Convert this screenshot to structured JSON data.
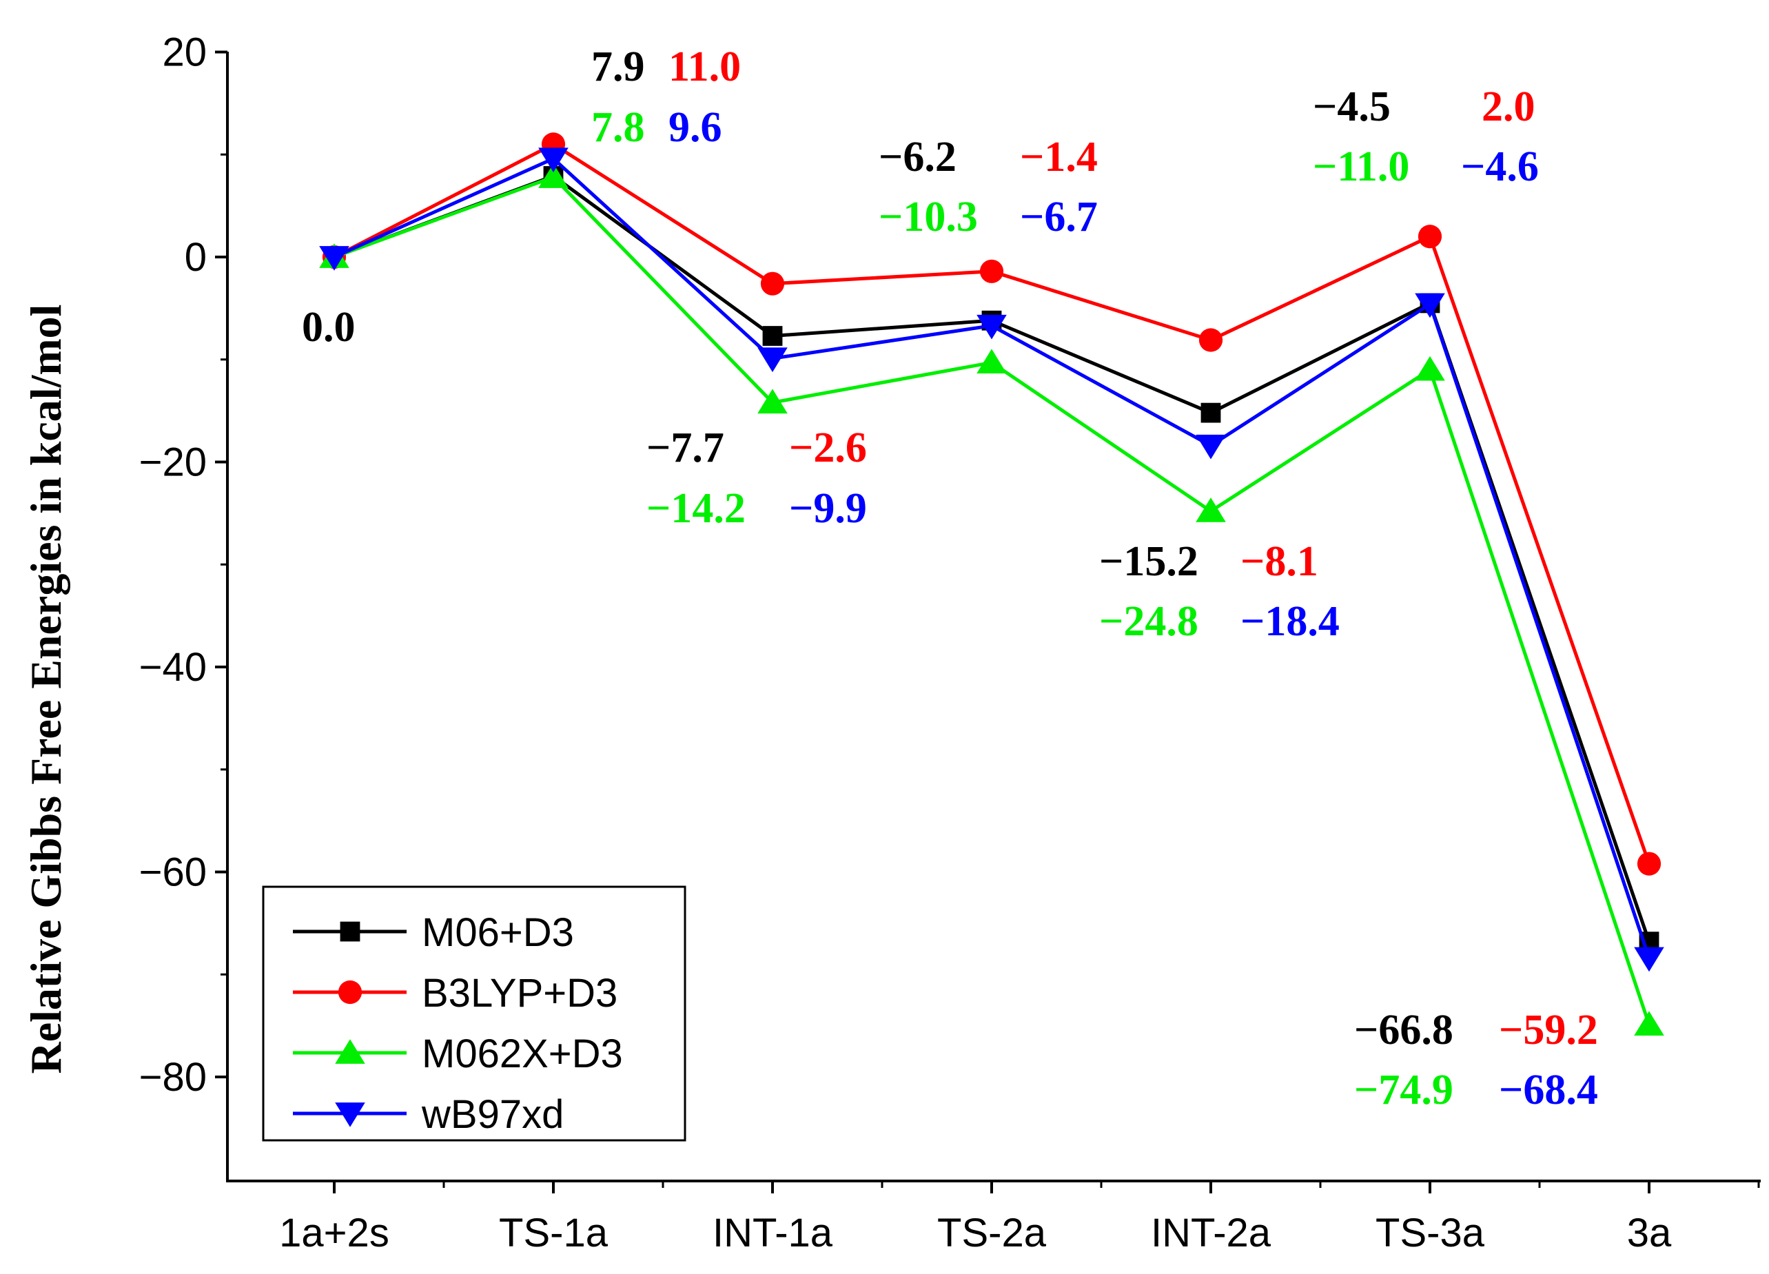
{
  "chart_data": {
    "type": "line",
    "ylabel": "Relative Gibbs Free Energies in kcal/mol",
    "xlabel": "",
    "categories": [
      "1a+2s",
      "TS-1a",
      "INT-1a",
      "TS-2a",
      "INT-2a",
      "TS-3a",
      "3a"
    ],
    "ylim": [
      -90,
      20
    ],
    "yticks": [
      20,
      0,
      -20,
      -40,
      -60,
      -80
    ],
    "ytick_labels": [
      "20",
      "0",
      "−20",
      "−40",
      "−60",
      "−80"
    ],
    "series": [
      {
        "name": "M06+D3",
        "color": "#000000",
        "marker": "square",
        "values": [
          0.0,
          7.9,
          -7.7,
          -6.2,
          -15.2,
          -4.5,
          -66.8
        ]
      },
      {
        "name": "B3LYP+D3",
        "color": "#ff0000",
        "marker": "circle",
        "values": [
          0.0,
          11.0,
          -2.6,
          -1.4,
          -8.1,
          2.0,
          -59.2
        ]
      },
      {
        "name": "M062X+D3",
        "color": "#00ee00",
        "marker": "triangle-up",
        "values": [
          0.0,
          7.8,
          -14.2,
          -10.3,
          -24.8,
          -11.0,
          -74.9
        ]
      },
      {
        "name": "wB97xd",
        "color": "#0000ff",
        "marker": "triangle-down",
        "values": [
          0.0,
          9.6,
          -9.9,
          -6.7,
          -18.4,
          -4.6,
          -68.4
        ]
      }
    ],
    "legend_position": "bottom-left",
    "grid": false,
    "annotations": [
      {
        "text": "0.0",
        "color": "#000000"
      },
      {
        "text": "7.9",
        "color": "#000000"
      },
      {
        "text": "11.0",
        "color": "#ff0000"
      },
      {
        "text": "7.8",
        "color": "#00ee00"
      },
      {
        "text": "9.6",
        "color": "#0000ff"
      },
      {
        "text": "−6.2",
        "color": "#000000"
      },
      {
        "text": "−1.4",
        "color": "#ff0000"
      },
      {
        "text": "−10.3",
        "color": "#00ee00"
      },
      {
        "text": "−6.7",
        "color": "#0000ff"
      },
      {
        "text": "−7.7",
        "color": "#000000"
      },
      {
        "text": "−2.6",
        "color": "#ff0000"
      },
      {
        "text": "−14.2",
        "color": "#00ee00"
      },
      {
        "text": "−9.9",
        "color": "#0000ff"
      },
      {
        "text": "−15.2",
        "color": "#000000"
      },
      {
        "text": "−8.1",
        "color": "#ff0000"
      },
      {
        "text": "−24.8",
        "color": "#00ee00"
      },
      {
        "text": "−18.4",
        "color": "#0000ff"
      },
      {
        "text": "−4.5",
        "color": "#000000"
      },
      {
        "text": "2.0",
        "color": "#ff0000"
      },
      {
        "text": "−11.0",
        "color": "#00ee00"
      },
      {
        "text": "−4.6",
        "color": "#0000ff"
      },
      {
        "text": "−66.8",
        "color": "#000000"
      },
      {
        "text": "−59.2",
        "color": "#ff0000"
      },
      {
        "text": "−74.9",
        "color": "#00ee00"
      },
      {
        "text": "−68.4",
        "color": "#0000ff"
      }
    ]
  }
}
